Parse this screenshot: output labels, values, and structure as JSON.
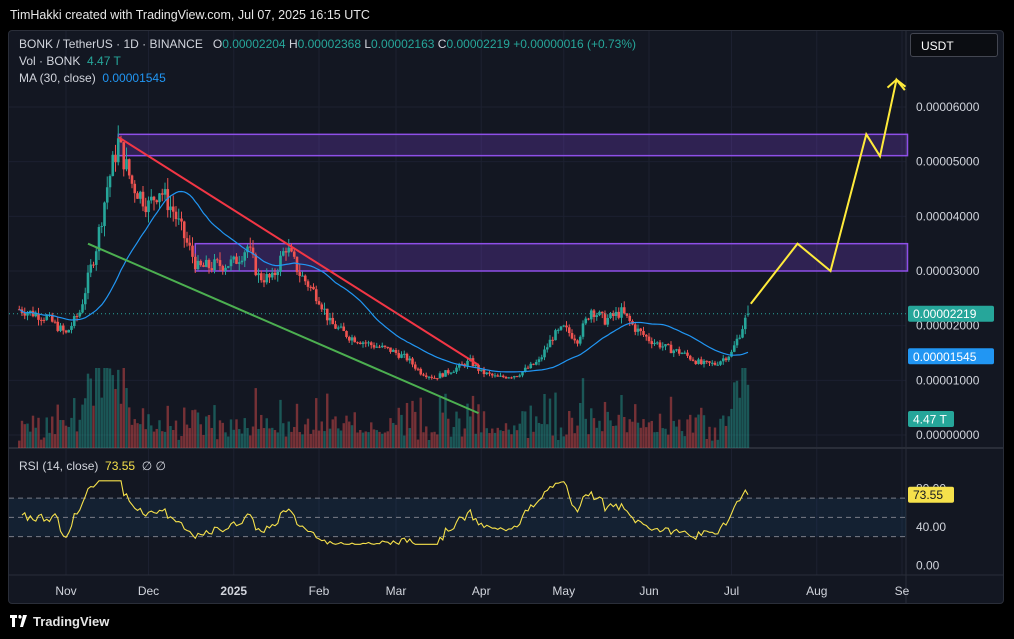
{
  "header": {
    "attribution": "TimHakki created with TradingView.com, Jul 07, 2025 16:15 UTC"
  },
  "legend": {
    "symbol": "BONK / TetherUS · 1D · BINANCE",
    "o_label": "O",
    "o": "0.00002204",
    "h_label": "H",
    "h": "0.00002368",
    "l_label": "L",
    "l": "0.00002163",
    "c_label": "C",
    "c": "0.00002219",
    "change": "+0.00000016 (+0.73%)",
    "vol_label": "Vol · BONK",
    "vol": "4.47 T",
    "ma_label": "MA (30, close)",
    "ma": "0.00001545"
  },
  "currency_button": "USDT",
  "rsi": {
    "label": "RSI (14, close)",
    "value": "73.55",
    "icons": "∅  ∅"
  },
  "footer": {
    "brand": "TradingView"
  },
  "colors": {
    "up": "#26a69a",
    "down": "#ef5350",
    "ma": "#2196f3",
    "rsi": "#f6e14b",
    "zone": "#7b3fd0",
    "upper_trend": "#f23645",
    "lower_trend": "#4caf50",
    "projection": "#ffeb3b"
  },
  "chart_data": {
    "type": "candlestick",
    "title": "BONK / TetherUS · 1D · BINANCE",
    "x_ticks": [
      "Nov",
      "Dec",
      "2025",
      "Feb",
      "Mar",
      "Apr",
      "May",
      "Jun",
      "Jul",
      "Aug",
      "Se"
    ],
    "x_tick_dates": [
      "2024-11-01",
      "2024-12-01",
      "2025-01-01",
      "2025-02-01",
      "2025-03-01",
      "2025-04-01",
      "2025-05-01",
      "2025-06-01",
      "2025-07-01",
      "2025-08-01",
      "2025-09-01"
    ],
    "y_ticks": [
      "0.00006000",
      "0.00005000",
      "0.00004000",
      "0.00003000",
      "0.00002000",
      "0.00001000",
      "0.00000000"
    ],
    "y_tick_values": [
      6e-05,
      5e-05,
      4e-05,
      3e-05,
      2e-05,
      1e-05,
      0.0
    ],
    "last_price": "0.00002219",
    "ma_badge": "0.00001545",
    "vol_badge": "4.47 T",
    "rsi_ticks": [
      "80.00",
      "40.00",
      "0.00"
    ],
    "rsi_tick_values": [
      80,
      40,
      0
    ],
    "rsi_badge": "73.55",
    "price_anchors": [
      [
        "2024-10-15",
        2.3e-05
      ],
      [
        "2024-10-25",
        2.15e-05
      ],
      [
        "2024-11-01",
        1.85e-05
      ],
      [
        "2024-11-06",
        2.25e-05
      ],
      [
        "2024-11-12",
        3.45e-05
      ],
      [
        "2024-11-16",
        4.55e-05
      ],
      [
        "2024-11-20",
        5.35e-05
      ],
      [
        "2024-11-25",
        4.6e-05
      ],
      [
        "2024-12-01",
        4.2e-05
      ],
      [
        "2024-12-05",
        4.5e-05
      ],
      [
        "2024-12-10",
        4.1e-05
      ],
      [
        "2024-12-15",
        3.5e-05
      ],
      [
        "2024-12-19",
        3.05e-05
      ],
      [
        "2024-12-25",
        3.1e-05
      ],
      [
        "2025-01-01",
        3.15e-05
      ],
      [
        "2025-01-06",
        3.45e-05
      ],
      [
        "2025-01-10",
        2.9e-05
      ],
      [
        "2025-01-15",
        2.85e-05
      ],
      [
        "2025-01-20",
        3.45e-05
      ],
      [
        "2025-01-25",
        2.95e-05
      ],
      [
        "2025-02-01",
        2.5e-05
      ],
      [
        "2025-02-05",
        2.05e-05
      ],
      [
        "2025-02-12",
        1.8e-05
      ],
      [
        "2025-02-20",
        1.65e-05
      ],
      [
        "2025-02-27",
        1.55e-05
      ],
      [
        "2025-03-05",
        1.4e-05
      ],
      [
        "2025-03-10",
        1.15e-05
      ],
      [
        "2025-03-15",
        1.05e-05
      ],
      [
        "2025-03-22",
        1.2e-05
      ],
      [
        "2025-03-28",
        1.35e-05
      ],
      [
        "2025-04-01",
        1.15e-05
      ],
      [
        "2025-04-07",
        1.05e-05
      ],
      [
        "2025-04-14",
        1.1e-05
      ],
      [
        "2025-04-22",
        1.35e-05
      ],
      [
        "2025-04-27",
        1.8e-05
      ],
      [
        "2025-05-01",
        1.95e-05
      ],
      [
        "2025-05-06",
        1.75e-05
      ],
      [
        "2025-05-11",
        2.3e-05
      ],
      [
        "2025-05-16",
        2.1e-05
      ],
      [
        "2025-05-22",
        2.25e-05
      ],
      [
        "2025-05-27",
        1.95e-05
      ],
      [
        "2025-06-01",
        1.75e-05
      ],
      [
        "2025-06-07",
        1.6e-05
      ],
      [
        "2025-06-13",
        1.5e-05
      ],
      [
        "2025-06-20",
        1.3e-05
      ],
      [
        "2025-06-25",
        1.3e-05
      ],
      [
        "2025-07-01",
        1.5e-05
      ],
      [
        "2025-07-07",
        2.22e-05
      ]
    ],
    "zones": [
      {
        "from": "2024-11-20",
        "to": "2025-09-03",
        "low": 5.11e-05,
        "high": 5.5e-05
      },
      {
        "from": "2024-12-18",
        "to": "2025-09-03",
        "low": 3e-05,
        "high": 3.5e-05
      }
    ],
    "upper_trendline": [
      [
        "2024-11-20",
        5.45e-05
      ],
      [
        "2025-03-31",
        1.28e-05
      ]
    ],
    "lower_trendline": [
      [
        "2024-11-09",
        3.5e-05
      ],
      [
        "2025-03-31",
        4e-06
      ]
    ],
    "projection": [
      [
        "2025-07-08",
        2.4e-05
      ],
      [
        "2025-07-25",
        3.5e-05
      ],
      [
        "2025-08-06",
        3e-05
      ],
      [
        "2025-08-19",
        5.5e-05
      ],
      [
        "2025-08-24",
        5.1e-05
      ],
      [
        "2025-08-30",
        6.5e-05
      ],
      [
        "2025-09-02",
        6.31e-05
      ]
    ]
  }
}
